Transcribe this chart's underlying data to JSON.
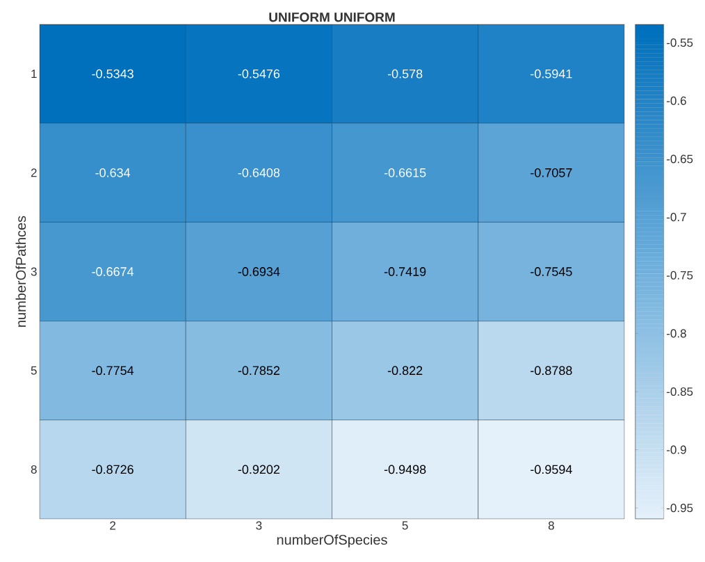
{
  "chart_data": {
    "type": "heatmap",
    "title": "UNIFORM UNIFORM",
    "xlabel": "numberOfSpecies",
    "ylabel": "numberOfPathces",
    "categories": [
      "2",
      "3",
      "5",
      "8"
    ],
    "y_categories": [
      "1",
      "2",
      "3",
      "5",
      "8"
    ],
    "cells": [
      [
        -0.5343,
        -0.5476,
        -0.578,
        -0.5941
      ],
      [
        -0.634,
        -0.6408,
        -0.6615,
        -0.7057
      ],
      [
        -0.6674,
        -0.6934,
        -0.7419,
        -0.7545
      ],
      [
        -0.7754,
        -0.7852,
        -0.822,
        -0.8788
      ],
      [
        -0.8726,
        -0.9202,
        -0.9498,
        -0.9594
      ]
    ],
    "data_labels": true,
    "clim": [
      -0.9594,
      -0.5343
    ],
    "cticks": [
      -0.95,
      -0.9,
      -0.85,
      -0.8,
      -0.75,
      -0.7,
      -0.65,
      -0.6,
      -0.55
    ]
  }
}
